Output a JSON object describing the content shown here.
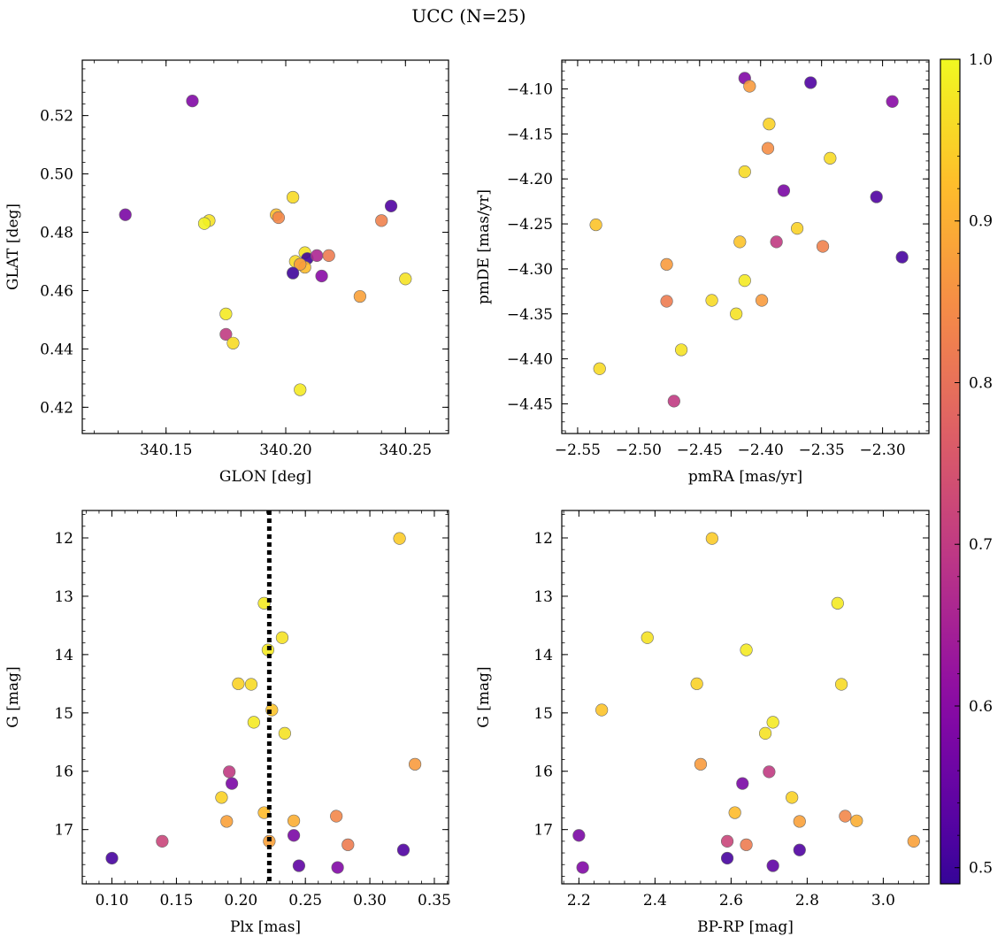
{
  "figure": {
    "title": "UCC (N=25)"
  },
  "colorbar": {
    "ticks": [
      "0.5",
      "0.6",
      "0.7",
      "0.8",
      "0.9",
      "1.0"
    ],
    "range": [
      0.49,
      1.0
    ],
    "colormap": "plasma"
  },
  "chart_data": [
    {
      "type": "scatter",
      "xlabel": "GLON [deg]",
      "ylabel": "GLAT [deg]",
      "xlim": [
        340.115,
        340.268
      ],
      "ylim": [
        0.411,
        0.539
      ],
      "xticks": [
        "340.15",
        "340.20",
        "340.25"
      ],
      "yticks": [
        "0.42",
        "0.44",
        "0.46",
        "0.48",
        "0.50",
        "0.52"
      ],
      "points": [
        {
          "x": 340.161,
          "y": 0.525,
          "c": 0.59
        },
        {
          "x": 340.133,
          "y": 0.486,
          "c": 0.58
        },
        {
          "x": 340.168,
          "y": 0.484,
          "c": 0.97
        },
        {
          "x": 340.166,
          "y": 0.483,
          "c": 0.99
        },
        {
          "x": 340.203,
          "y": 0.492,
          "c": 0.96
        },
        {
          "x": 340.196,
          "y": 0.486,
          "c": 0.92
        },
        {
          "x": 340.197,
          "y": 0.485,
          "c": 0.84
        },
        {
          "x": 340.244,
          "y": 0.489,
          "c": 0.52
        },
        {
          "x": 340.24,
          "y": 0.484,
          "c": 0.83
        },
        {
          "x": 340.208,
          "y": 0.473,
          "c": 0.97
        },
        {
          "x": 340.209,
          "y": 0.471,
          "c": 0.5
        },
        {
          "x": 340.213,
          "y": 0.472,
          "c": 0.66
        },
        {
          "x": 340.218,
          "y": 0.472,
          "c": 0.82
        },
        {
          "x": 340.204,
          "y": 0.47,
          "c": 0.96
        },
        {
          "x": 340.206,
          "y": 0.469,
          "c": 0.98
        },
        {
          "x": 340.208,
          "y": 0.468,
          "c": 0.92
        },
        {
          "x": 340.206,
          "y": 0.469,
          "c": 0.87
        },
        {
          "x": 340.203,
          "y": 0.466,
          "c": 0.5
        },
        {
          "x": 340.215,
          "y": 0.465,
          "c": 0.6
        },
        {
          "x": 340.25,
          "y": 0.464,
          "c": 0.97
        },
        {
          "x": 340.231,
          "y": 0.458,
          "c": 0.88
        },
        {
          "x": 340.175,
          "y": 0.452,
          "c": 0.98
        },
        {
          "x": 340.175,
          "y": 0.445,
          "c": 0.7
        },
        {
          "x": 340.178,
          "y": 0.442,
          "c": 0.96
        },
        {
          "x": 340.206,
          "y": 0.426,
          "c": 0.98
        }
      ]
    },
    {
      "type": "scatter",
      "xlabel": "pmRA [mas/yr]",
      "ylabel": "pmDE [mas/yr]",
      "xlim": [
        -2.563,
        -2.262
      ],
      "ylim": [
        -4.483,
        -4.068
      ],
      "xticks": [
        "−2.55",
        "−2.50",
        "−2.45",
        "−2.40",
        "−2.35",
        "−2.30"
      ],
      "yticks": [
        "−4.10",
        "−4.15",
        "−4.20",
        "−4.25",
        "−4.30",
        "−4.35",
        "−4.40",
        "−4.45"
      ],
      "points": [
        {
          "x": -2.413,
          "y": -4.088,
          "c": 0.59
        },
        {
          "x": -2.409,
          "y": -4.097,
          "c": 0.87
        },
        {
          "x": -2.359,
          "y": -4.093,
          "c": 0.52
        },
        {
          "x": -2.292,
          "y": -4.114,
          "c": 0.6
        },
        {
          "x": -2.393,
          "y": -4.139,
          "c": 0.95
        },
        {
          "x": -2.394,
          "y": -4.166,
          "c": 0.85
        },
        {
          "x": -2.343,
          "y": -4.177,
          "c": 0.96
        },
        {
          "x": -2.413,
          "y": -4.192,
          "c": 0.96
        },
        {
          "x": -2.381,
          "y": -4.213,
          "c": 0.58
        },
        {
          "x": -2.305,
          "y": -4.22,
          "c": 0.52
        },
        {
          "x": -2.535,
          "y": -4.251,
          "c": 0.93
        },
        {
          "x": -2.37,
          "y": -4.255,
          "c": 0.95
        },
        {
          "x": -2.417,
          "y": -4.27,
          "c": 0.93
        },
        {
          "x": -2.387,
          "y": -4.27,
          "c": 0.7
        },
        {
          "x": -2.349,
          "y": -4.275,
          "c": 0.83
        },
        {
          "x": -2.284,
          "y": -4.287,
          "c": 0.51
        },
        {
          "x": -2.477,
          "y": -4.295,
          "c": 0.87
        },
        {
          "x": -2.413,
          "y": -4.313,
          "c": 0.98
        },
        {
          "x": -2.477,
          "y": -4.336,
          "c": 0.82
        },
        {
          "x": -2.44,
          "y": -4.335,
          "c": 0.96
        },
        {
          "x": -2.399,
          "y": -4.335,
          "c": 0.87
        },
        {
          "x": -2.42,
          "y": -4.35,
          "c": 0.97
        },
        {
          "x": -2.465,
          "y": -4.39,
          "c": 0.97
        },
        {
          "x": -2.532,
          "y": -4.411,
          "c": 0.96
        },
        {
          "x": -2.471,
          "y": -4.447,
          "c": 0.7
        }
      ]
    },
    {
      "type": "scatter",
      "xlabel": "Plx [mas]",
      "ylabel": "G [mag]",
      "xlim": [
        0.077,
        0.361
      ],
      "ylim": [
        17.93,
        11.53
      ],
      "y_inverted": true,
      "xticks": [
        "0.10",
        "0.15",
        "0.20",
        "0.25",
        "0.30",
        "0.35"
      ],
      "yticks": [
        "12",
        "13",
        "14",
        "15",
        "16",
        "17"
      ],
      "vline": {
        "x": 0.222,
        "style": "dotted",
        "color": "#000000"
      },
      "points": [
        {
          "x": 0.323,
          "y": 12.01,
          "c": 0.94
        },
        {
          "x": 0.218,
          "y": 13.12,
          "c": 0.98
        },
        {
          "x": 0.232,
          "y": 13.71,
          "c": 0.97
        },
        {
          "x": 0.221,
          "y": 13.92,
          "c": 0.98
        },
        {
          "x": 0.198,
          "y": 14.5,
          "c": 0.95
        },
        {
          "x": 0.208,
          "y": 14.51,
          "c": 0.96
        },
        {
          "x": 0.224,
          "y": 14.95,
          "c": 0.93
        },
        {
          "x": 0.21,
          "y": 15.16,
          "c": 0.98
        },
        {
          "x": 0.234,
          "y": 15.35,
          "c": 0.97
        },
        {
          "x": 0.335,
          "y": 15.88,
          "c": 0.87
        },
        {
          "x": 0.191,
          "y": 16.01,
          "c": 0.7
        },
        {
          "x": 0.193,
          "y": 16.21,
          "c": 0.58
        },
        {
          "x": 0.185,
          "y": 16.45,
          "c": 0.95
        },
        {
          "x": 0.218,
          "y": 16.71,
          "c": 0.92
        },
        {
          "x": 0.274,
          "y": 16.77,
          "c": 0.84
        },
        {
          "x": 0.189,
          "y": 16.86,
          "c": 0.88
        },
        {
          "x": 0.241,
          "y": 16.85,
          "c": 0.9
        },
        {
          "x": 0.241,
          "y": 17.1,
          "c": 0.58
        },
        {
          "x": 0.139,
          "y": 17.2,
          "c": 0.72
        },
        {
          "x": 0.222,
          "y": 17.2,
          "c": 0.88
        },
        {
          "x": 0.283,
          "y": 17.26,
          "c": 0.82
        },
        {
          "x": 0.326,
          "y": 17.35,
          "c": 0.52
        },
        {
          "x": 0.1,
          "y": 17.49,
          "c": 0.51
        },
        {
          "x": 0.245,
          "y": 17.62,
          "c": 0.54
        },
        {
          "x": 0.275,
          "y": 17.65,
          "c": 0.59
        }
      ]
    },
    {
      "type": "scatter",
      "xlabel": "BP-RP [mag]",
      "ylabel": "G [mag]",
      "xlim": [
        2.155,
        3.12
      ],
      "ylim": [
        17.93,
        11.53
      ],
      "y_inverted": true,
      "xticks": [
        "2.2",
        "2.4",
        "2.6",
        "2.8",
        "3.0"
      ],
      "yticks": [
        "12",
        "13",
        "14",
        "15",
        "16",
        "17"
      ],
      "points": [
        {
          "x": 2.55,
          "y": 12.01,
          "c": 0.94
        },
        {
          "x": 2.88,
          "y": 13.12,
          "c": 0.98
        },
        {
          "x": 2.38,
          "y": 13.71,
          "c": 0.97
        },
        {
          "x": 2.64,
          "y": 13.92,
          "c": 0.98
        },
        {
          "x": 2.51,
          "y": 14.5,
          "c": 0.95
        },
        {
          "x": 2.89,
          "y": 14.51,
          "c": 0.96
        },
        {
          "x": 2.26,
          "y": 14.95,
          "c": 0.93
        },
        {
          "x": 2.71,
          "y": 15.16,
          "c": 0.98
        },
        {
          "x": 2.69,
          "y": 15.35,
          "c": 0.97
        },
        {
          "x": 2.52,
          "y": 15.88,
          "c": 0.87
        },
        {
          "x": 2.7,
          "y": 16.01,
          "c": 0.7
        },
        {
          "x": 2.63,
          "y": 16.21,
          "c": 0.58
        },
        {
          "x": 2.76,
          "y": 16.45,
          "c": 0.95
        },
        {
          "x": 2.61,
          "y": 16.71,
          "c": 0.92
        },
        {
          "x": 2.9,
          "y": 16.77,
          "c": 0.84
        },
        {
          "x": 2.78,
          "y": 16.86,
          "c": 0.88
        },
        {
          "x": 2.93,
          "y": 16.85,
          "c": 0.9
        },
        {
          "x": 2.2,
          "y": 17.1,
          "c": 0.58
        },
        {
          "x": 2.59,
          "y": 17.2,
          "c": 0.72
        },
        {
          "x": 3.08,
          "y": 17.2,
          "c": 0.88
        },
        {
          "x": 2.64,
          "y": 17.26,
          "c": 0.82
        },
        {
          "x": 2.78,
          "y": 17.35,
          "c": 0.52
        },
        {
          "x": 2.59,
          "y": 17.49,
          "c": 0.51
        },
        {
          "x": 2.71,
          "y": 17.62,
          "c": 0.54
        },
        {
          "x": 2.21,
          "y": 17.65,
          "c": 0.59
        }
      ]
    }
  ]
}
